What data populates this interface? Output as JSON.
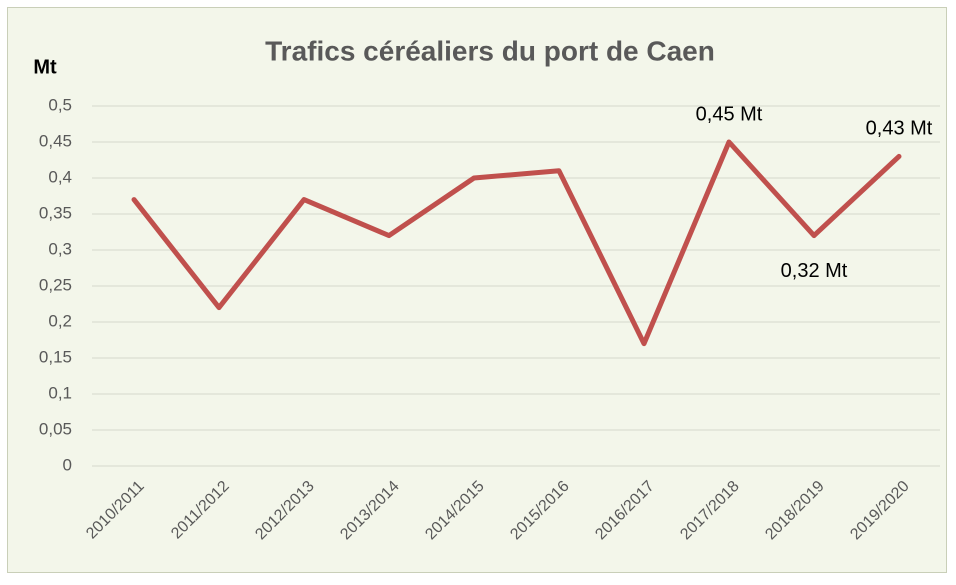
{
  "chart_data": {
    "type": "line",
    "title": "Trafics céréaliers du port de Caen",
    "y_label": "Mt",
    "categories": [
      "2010/2011",
      "2011/2012",
      "2012/2013",
      "2013/2014",
      "2014/2015",
      "2015/2016",
      "2016/2017",
      "2017/2018",
      "2018/2019",
      "2019/2020"
    ],
    "values": [
      0.37,
      0.22,
      0.37,
      0.32,
      0.4,
      0.41,
      0.17,
      0.45,
      0.32,
      0.43
    ],
    "value_labels": [
      null,
      null,
      null,
      null,
      null,
      null,
      null,
      "0,45 Mt",
      "0,32 Mt",
      "0,43 Mt"
    ],
    "color": "#c0504d",
    "ylim": [
      0,
      0.5
    ],
    "yticks": [
      0,
      {
        "value": 0.05,
        "label": "0,05"
      },
      {
        "value": 0.1,
        "label": "0,1"
      },
      {
        "value": 0.15,
        "label": "0,15"
      },
      {
        "value": 0.2,
        "label": "0,2"
      },
      {
        "value": 0.25,
        "label": "0,25"
      },
      {
        "value": 0.3,
        "label": "0,3"
      },
      {
        "value": 0.35,
        "label": "0,35"
      },
      {
        "value": 0.4,
        "label": "0,4"
      },
      {
        "value": 0.45,
        "label": "0,45"
      },
      {
        "value": 0.5,
        "label": "0,5"
      }
    ],
    "grid": true
  }
}
